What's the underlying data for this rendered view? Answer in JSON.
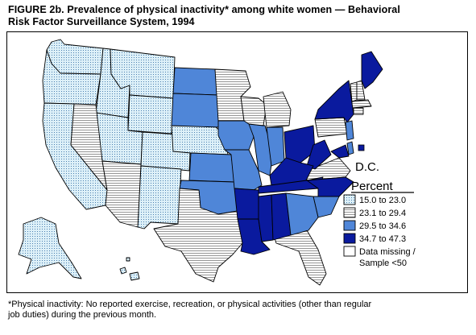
{
  "figure": {
    "title_line1": "FIGURE 2b. Prevalence of physical inactivity* among white women — Behavioral",
    "title_line2": "Risk Factor Surveillance System, 1994"
  },
  "map": {
    "dc_label": "D.C.",
    "legend": {
      "title": "Percent",
      "items": [
        {
          "label": "15.0 to 23.0",
          "pattern": "dots",
          "color": "#ddf0f8"
        },
        {
          "label": "23.1 to 29.4",
          "pattern": "hlines",
          "color": "#ffffff"
        },
        {
          "label": "29.5 to 34.6",
          "pattern": "solid",
          "color": "#4f86d8"
        },
        {
          "label": "34.7 to 47.3",
          "pattern": "solid",
          "color": "#0a1a9e"
        },
        {
          "label": "Data missing /",
          "label2": "Sample <50",
          "pattern": "blank",
          "color": "#ffffff"
        }
      ]
    }
  },
  "footnote": {
    "line1": "*Physical inactivity: No reported exercise, recreation, or physical activities (other than regular",
    "line2": "job duties) during the previous month."
  }
}
